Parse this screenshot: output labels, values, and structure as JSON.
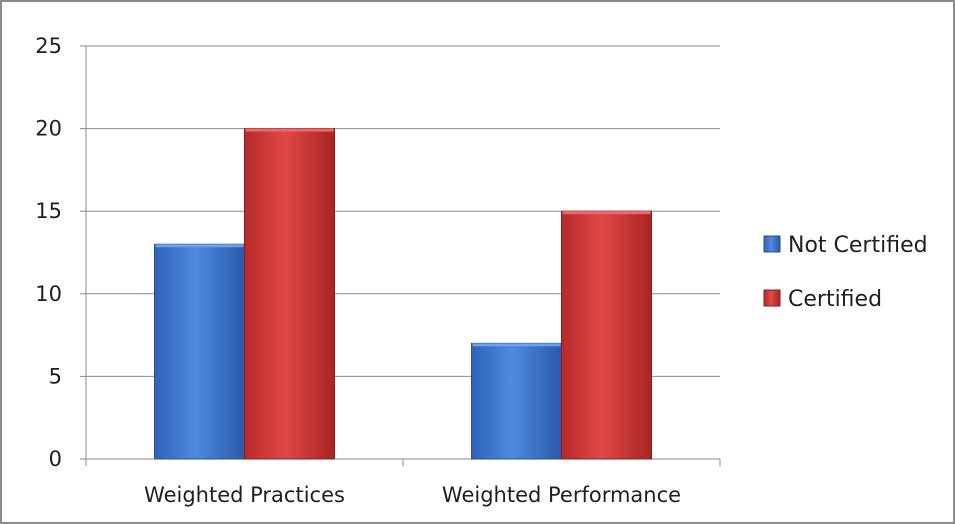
{
  "chart_data": {
    "type": "bar",
    "title": "",
    "xlabel": "",
    "ylabel": "",
    "categories": [
      "Weighted Practices",
      "Weighted Performance"
    ],
    "series": [
      {
        "name": "Not Certified",
        "values": [
          13,
          7
        ],
        "color": "#3b78d0"
      },
      {
        "name": "Certified",
        "values": [
          20,
          15
        ],
        "color": "#d03a3a"
      }
    ],
    "ylim": [
      0,
      25
    ],
    "yticks": [
      0,
      5,
      10,
      15,
      20,
      25
    ],
    "grid": true,
    "legend_position": "right"
  }
}
